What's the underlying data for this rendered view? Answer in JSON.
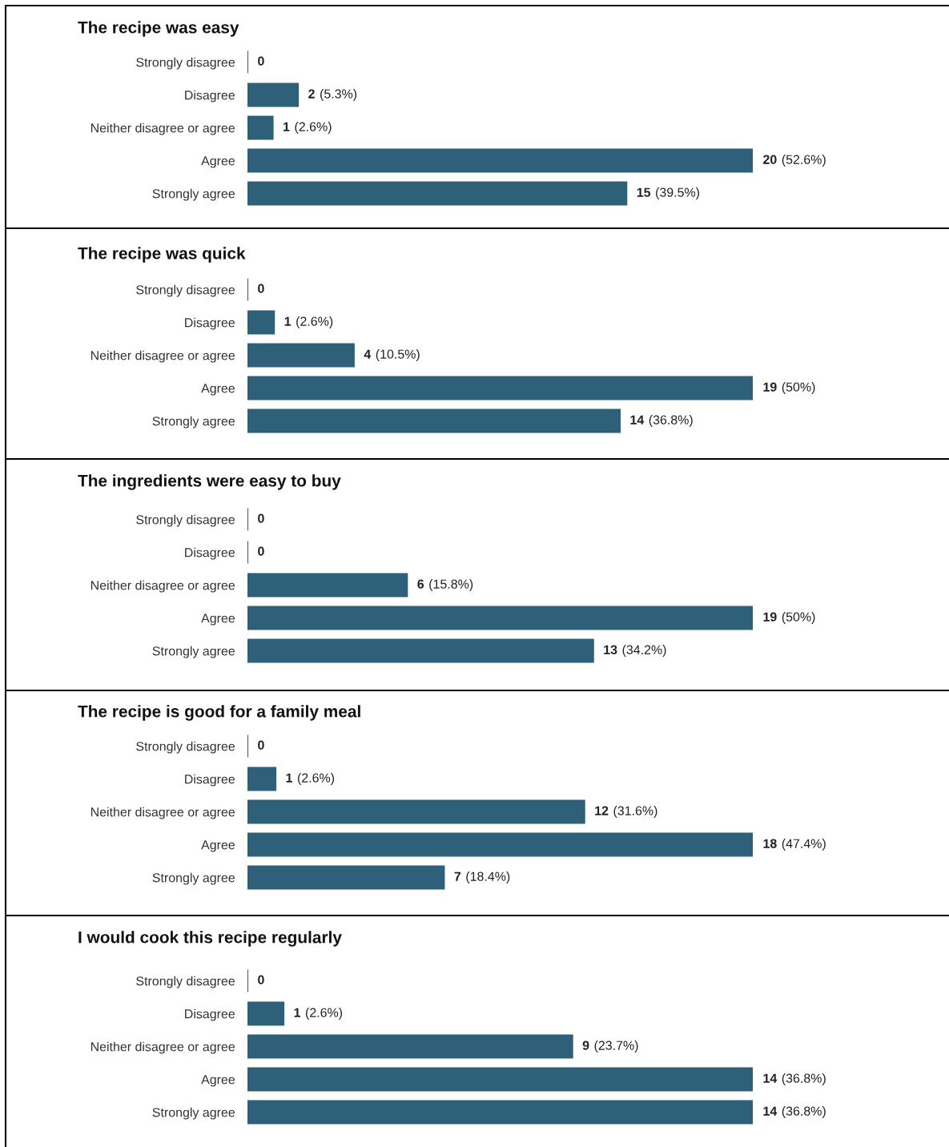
{
  "chart_data": [
    {
      "type": "bar",
      "orientation": "horizontal",
      "title": "The recipe was easy",
      "tick_labels": "y",
      "color": "#2e6079",
      "categories": [
        "Strongly disagree",
        "Disagree",
        "Neither disagree or agree",
        "Agree",
        "Strongly agree"
      ],
      "values": [
        0,
        2,
        1,
        20,
        15
      ],
      "value_labels": [
        "0",
        "2 (5.3%)",
        "1 (2.6%)",
        "20 (52.6%)",
        "15 (39.5%)"
      ]
    },
    {
      "type": "bar",
      "orientation": "horizontal",
      "title": "The recipe was quick",
      "tick_labels": "y",
      "color": "#2e6079",
      "categories": [
        "Strongly disagree",
        "Disagree",
        "Neither disagree or agree",
        "Agree",
        "Strongly agree"
      ],
      "values": [
        0,
        1,
        4,
        19,
        14
      ],
      "value_labels": [
        "0",
        "1 (2.6%)",
        "4 (10.5%)",
        "19 (50%)",
        "14 (36.8%)"
      ]
    },
    {
      "type": "bar",
      "orientation": "horizontal",
      "title": "The ingredients were easy to buy",
      "tick_labels": "y",
      "color": "#2e6079",
      "categories": [
        "Strongly disagree",
        "Disagree",
        "Neither disagree or agree",
        "Agree",
        "Strongly agree"
      ],
      "values": [
        0,
        0,
        6,
        19,
        13
      ],
      "value_labels": [
        "0",
        "0",
        "6 (15.8%)",
        "19 (50%)",
        "13 (34.2%)"
      ]
    },
    {
      "type": "bar",
      "orientation": "horizontal",
      "title": "The recipe is good for a family meal",
      "tick_labels": "y",
      "color": "#2e6079",
      "categories": [
        "Strongly disagree",
        "Disagree",
        "Neither disagree or agree",
        "Agree",
        "Strongly agree"
      ],
      "values": [
        0,
        1,
        12,
        18,
        7
      ],
      "value_labels": [
        "0",
        "1 (2.6%)",
        "12 (31.6%)",
        "18 (47.4%)",
        "7 (18.4%)"
      ]
    },
    {
      "type": "bar",
      "orientation": "horizontal",
      "title": "I would cook this recipe regularly",
      "tick_labels": "y",
      "color": "#2e6079",
      "categories": [
        "Strongly disagree",
        "Disagree",
        "Neither disagree or agree",
        "Agree",
        "Strongly agree"
      ],
      "values": [
        0,
        1,
        9,
        14,
        14
      ],
      "value_labels": [
        "0",
        "1 (2.6%)",
        "9 (23.7%)",
        "14 (36.8%)",
        "14 (36.8%)"
      ]
    }
  ]
}
